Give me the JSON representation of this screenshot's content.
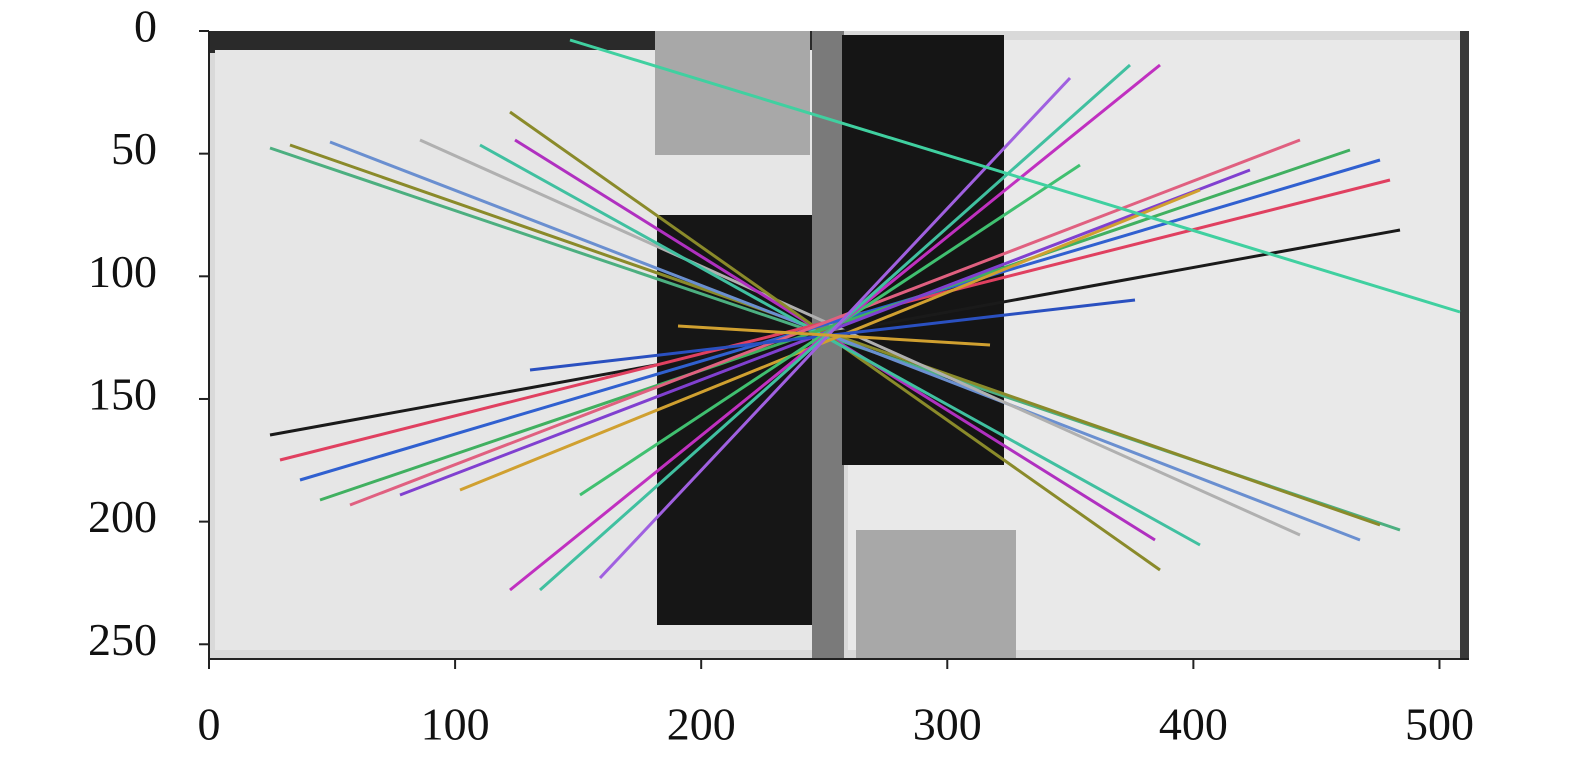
{
  "chart_data": {
    "type": "image",
    "xlim": [
      0,
      512
    ],
    "ylim": [
      256,
      0
    ],
    "xticks": [
      0,
      100,
      200,
      300,
      400,
      500
    ],
    "yticks": [
      0,
      50,
      100,
      150,
      200,
      250
    ]
  }
}
